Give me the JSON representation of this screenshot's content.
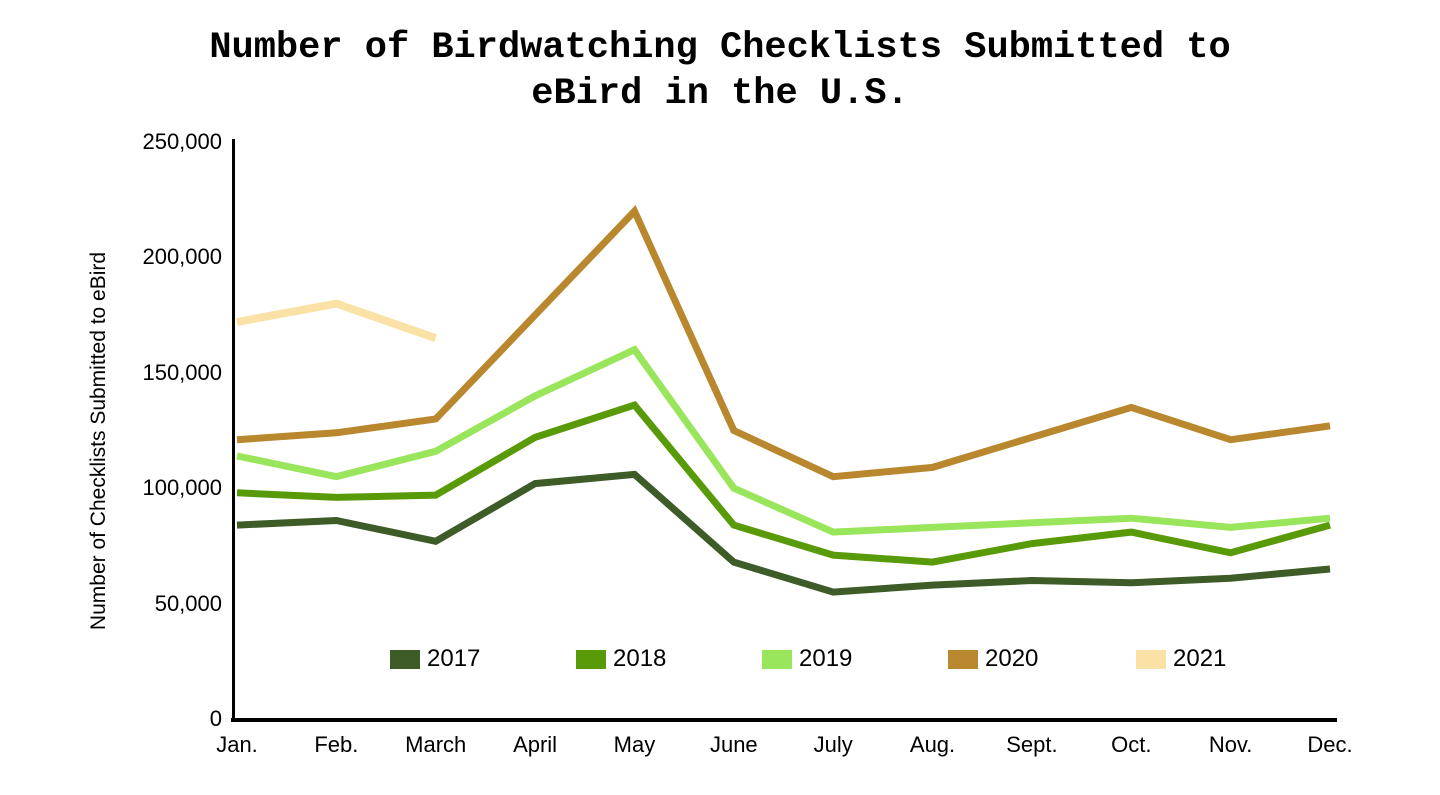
{
  "chart": {
    "title": "Number of Birdwatching Checklists Submitted to eBird in the U.S.",
    "y_axis_title": "Number of Checklists Submitted to eBird"
  },
  "chart_data": {
    "type": "line",
    "title": "Number of Birdwatching Checklists Submitted to eBird in the U.S.",
    "xlabel": "",
    "ylabel": "Number of Checklists Submitted to eBird",
    "ylim": [
      0,
      250000
    ],
    "grid": false,
    "legend_position": "bottom",
    "categories": [
      "Jan.",
      "Feb.",
      "March",
      "April",
      "May",
      "June",
      "July",
      "Aug.",
      "Sept.",
      "Oct.",
      "Nov.",
      "Dec."
    ],
    "yticks": [
      {
        "value": 0,
        "label": "0"
      },
      {
        "value": 50000,
        "label": "50,000"
      },
      {
        "value": 100000,
        "label": "100,000"
      },
      {
        "value": 150000,
        "label": "150,000"
      },
      {
        "value": 200000,
        "label": "200,000"
      },
      {
        "value": 250000,
        "label": "250,000"
      }
    ],
    "series": [
      {
        "name": "2017",
        "color": "#3D5C28",
        "values": [
          84000,
          86000,
          77000,
          102000,
          106000,
          68000,
          55000,
          58000,
          60000,
          59000,
          61000,
          65000
        ]
      },
      {
        "name": "2018",
        "color": "#599A08",
        "values": [
          98000,
          96000,
          97000,
          122000,
          136000,
          84000,
          71000,
          68000,
          76000,
          81000,
          72000,
          84000
        ]
      },
      {
        "name": "2019",
        "color": "#99E55C",
        "values": [
          114000,
          105000,
          116000,
          140000,
          160000,
          100000,
          81000,
          83000,
          85000,
          87000,
          83000,
          87000
        ]
      },
      {
        "name": "2020",
        "color": "#B8872E",
        "values": [
          121000,
          124000,
          130000,
          175000,
          220000,
          125000,
          105000,
          109000,
          122000,
          135000,
          121000,
          127000
        ]
      },
      {
        "name": "2021",
        "color": "#FAE2A7",
        "values": [
          172000,
          180000,
          165000,
          null,
          null,
          null,
          null,
          null,
          null,
          null,
          null,
          null
        ]
      }
    ]
  },
  "layout_colors": {
    "axis": "#000000",
    "background": "#ffffff"
  }
}
